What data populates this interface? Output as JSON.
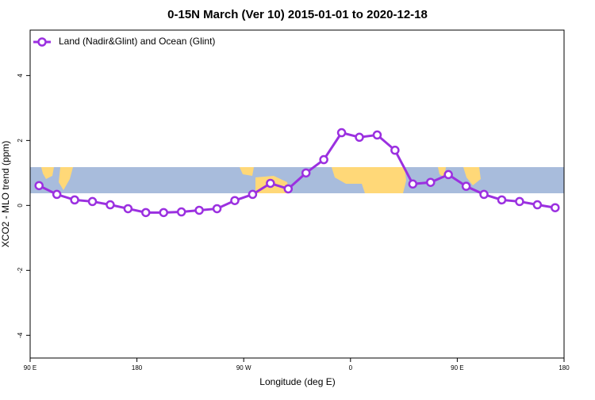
{
  "chart_data": {
    "type": "line",
    "title": "0-15N March (Ver 10)   2015-01-01 to 2020-12-18",
    "x_label": "Longitude (deg E)",
    "y_label": "XCO2 - MLO trend (ppm)",
    "x": [
      97.5,
      112.5,
      127.5,
      142.5,
      157.5,
      172.5,
      187.5,
      202.5,
      217.5,
      232.5,
      247.5,
      262.5,
      277.5,
      292.5,
      307.5,
      322.5,
      337.5,
      352.5,
      367.5,
      382.5,
      397.5,
      412.5,
      427.5,
      442.5,
      457.5,
      472.5,
      487.5,
      502.5,
      517.5,
      532.5
    ],
    "series": [
      {
        "name": "Land (Nadir&Glint) and Ocean (Glint)",
        "color": "#9b30e0",
        "values": [
          0.61,
          0.34,
          0.17,
          0.12,
          0.02,
          -0.1,
          -0.22,
          -0.22,
          -0.2,
          -0.15,
          -0.1,
          0.15,
          0.34,
          0.68,
          0.51,
          1.0,
          1.41,
          2.24,
          2.1,
          2.17,
          1.7,
          0.66,
          0.71,
          0.95,
          0.59,
          0.34,
          0.17,
          0.12,
          0.02,
          -0.07
        ]
      }
    ],
    "xlim": [
      90,
      540
    ],
    "xticks": [
      {
        "value": 90,
        "label": "90 E"
      },
      180,
      {
        "value": 270,
        "label": "90 W"
      },
      {
        "value": 360,
        "label": "0"
      },
      {
        "value": 450,
        "label": "90 E"
      },
      {
        "value": 540,
        "label": "180"
      }
    ],
    "ylim": [
      -4.7,
      5.4
    ],
    "yticks": [
      -4,
      -2,
      0,
      2,
      4
    ],
    "legend": "top-left"
  }
}
